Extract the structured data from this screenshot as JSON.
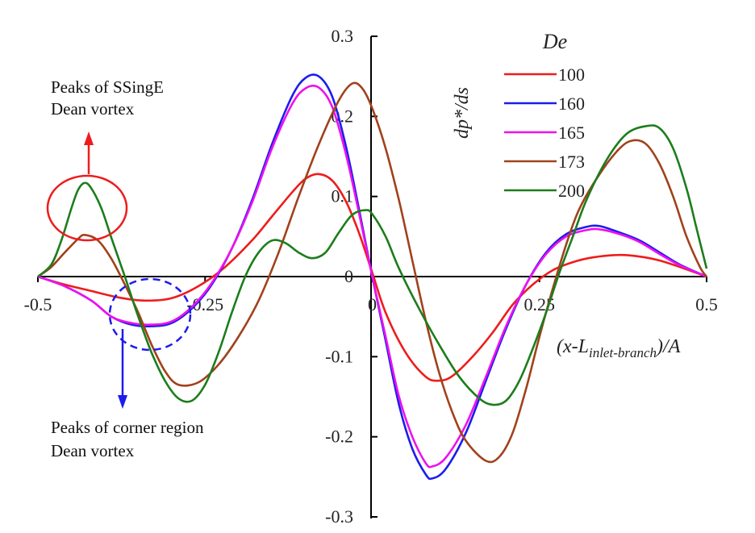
{
  "chart_data": {
    "type": "line",
    "xlabel_parts": [
      "(x-L",
      "inlet-branch",
      ")/A"
    ],
    "ylabel": "dp*/ds",
    "xlim": [
      -0.5,
      0.5
    ],
    "ylim": [
      -0.3,
      0.3
    ],
    "x_ticks": [
      {
        "value": -0.5,
        "label": "-0.5"
      },
      {
        "value": -0.25,
        "label": "-0.25"
      },
      {
        "value": 0,
        "label": "0"
      },
      {
        "value": 0.25,
        "label": "0.25"
      },
      {
        "value": 0.5,
        "label": "0.5"
      }
    ],
    "y_ticks": [
      {
        "value": 0.3,
        "label": "0.3"
      },
      {
        "value": 0.2,
        "label": "0.2"
      },
      {
        "value": 0.1,
        "label": "0.1"
      },
      {
        "value": 0,
        "label": "0"
      },
      {
        "value": -0.1,
        "label": "-0.1"
      },
      {
        "value": -0.2,
        "label": "-0.2"
      },
      {
        "value": -0.3,
        "label": "-0.3"
      }
    ],
    "legend_title": "De",
    "legend_position": "top-right",
    "series": [
      {
        "name": "100",
        "color": "#ee1c1c",
        "points": [
          [
            -0.5,
            0
          ],
          [
            -0.46,
            -0.01
          ],
          [
            -0.42,
            -0.018
          ],
          [
            -0.38,
            -0.026
          ],
          [
            -0.34,
            -0.03
          ],
          [
            -0.3,
            -0.027
          ],
          [
            -0.26,
            -0.012
          ],
          [
            -0.22,
            0.012
          ],
          [
            -0.18,
            0.045
          ],
          [
            -0.15,
            0.075
          ],
          [
            -0.12,
            0.105
          ],
          [
            -0.1,
            0.122
          ],
          [
            -0.08,
            0.128
          ],
          [
            -0.06,
            0.12
          ],
          [
            -0.04,
            0.095
          ],
          [
            -0.02,
            0.055
          ],
          [
            0,
            0.005
          ],
          [
            0.02,
            -0.045
          ],
          [
            0.05,
            -0.095
          ],
          [
            0.08,
            -0.125
          ],
          [
            0.1,
            -0.13
          ],
          [
            0.12,
            -0.124
          ],
          [
            0.15,
            -0.1
          ],
          [
            0.18,
            -0.07
          ],
          [
            0.21,
            -0.035
          ],
          [
            0.24,
            -0.01
          ],
          [
            0.27,
            0.008
          ],
          [
            0.3,
            0.018
          ],
          [
            0.33,
            0.024
          ],
          [
            0.37,
            0.027
          ],
          [
            0.4,
            0.025
          ],
          [
            0.43,
            0.02
          ],
          [
            0.46,
            0.012
          ],
          [
            0.5,
            0
          ]
        ]
      },
      {
        "name": "160",
        "color": "#1c1cee",
        "points": [
          [
            -0.5,
            0
          ],
          [
            -0.46,
            -0.012
          ],
          [
            -0.42,
            -0.03
          ],
          [
            -0.39,
            -0.05
          ],
          [
            -0.36,
            -0.06
          ],
          [
            -0.33,
            -0.062
          ],
          [
            -0.3,
            -0.058
          ],
          [
            -0.27,
            -0.04
          ],
          [
            -0.24,
            -0.01
          ],
          [
            -0.21,
            0.035
          ],
          [
            -0.18,
            0.095
          ],
          [
            -0.15,
            0.165
          ],
          [
            -0.12,
            0.225
          ],
          [
            -0.1,
            0.248
          ],
          [
            -0.08,
            0.25
          ],
          [
            -0.06,
            0.225
          ],
          [
            -0.04,
            0.165
          ],
          [
            -0.02,
            0.085
          ],
          [
            0,
            0.0
          ],
          [
            0.02,
            -0.08
          ],
          [
            0.04,
            -0.16
          ],
          [
            0.06,
            -0.215
          ],
          [
            0.08,
            -0.247
          ],
          [
            0.09,
            -0.252
          ],
          [
            0.11,
            -0.24
          ],
          [
            0.14,
            -0.195
          ],
          [
            0.17,
            -0.13
          ],
          [
            0.2,
            -0.065
          ],
          [
            0.23,
            -0.01
          ],
          [
            0.26,
            0.03
          ],
          [
            0.29,
            0.053
          ],
          [
            0.32,
            0.062
          ],
          [
            0.34,
            0.063
          ],
          [
            0.37,
            0.055
          ],
          [
            0.4,
            0.045
          ],
          [
            0.43,
            0.03
          ],
          [
            0.46,
            0.015
          ],
          [
            0.5,
            0
          ]
        ]
      },
      {
        "name": "165",
        "color": "#ee10ee",
        "points": [
          [
            -0.5,
            0
          ],
          [
            -0.46,
            -0.012
          ],
          [
            -0.42,
            -0.03
          ],
          [
            -0.39,
            -0.05
          ],
          [
            -0.36,
            -0.058
          ],
          [
            -0.33,
            -0.06
          ],
          [
            -0.3,
            -0.056
          ],
          [
            -0.27,
            -0.038
          ],
          [
            -0.24,
            -0.008
          ],
          [
            -0.21,
            0.035
          ],
          [
            -0.18,
            0.092
          ],
          [
            -0.15,
            0.16
          ],
          [
            -0.12,
            0.215
          ],
          [
            -0.1,
            0.235
          ],
          [
            -0.08,
            0.236
          ],
          [
            -0.06,
            0.212
          ],
          [
            -0.04,
            0.155
          ],
          [
            -0.02,
            0.08
          ],
          [
            0,
            0.0
          ],
          [
            0.02,
            -0.075
          ],
          [
            0.04,
            -0.15
          ],
          [
            0.06,
            -0.2
          ],
          [
            0.08,
            -0.233
          ],
          [
            0.09,
            -0.237
          ],
          [
            0.11,
            -0.226
          ],
          [
            0.14,
            -0.185
          ],
          [
            0.17,
            -0.125
          ],
          [
            0.2,
            -0.062
          ],
          [
            0.23,
            -0.01
          ],
          [
            0.26,
            0.028
          ],
          [
            0.29,
            0.05
          ],
          [
            0.32,
            0.058
          ],
          [
            0.34,
            0.059
          ],
          [
            0.37,
            0.053
          ],
          [
            0.4,
            0.043
          ],
          [
            0.43,
            0.028
          ],
          [
            0.46,
            0.014
          ],
          [
            0.5,
            0
          ]
        ]
      },
      {
        "name": "173",
        "color": "#a0421c",
        "points": [
          [
            -0.5,
            0
          ],
          [
            -0.48,
            0.012
          ],
          [
            -0.46,
            0.03
          ],
          [
            -0.44,
            0.047
          ],
          [
            -0.43,
            0.052
          ],
          [
            -0.41,
            0.045
          ],
          [
            -0.39,
            0.022
          ],
          [
            -0.37,
            -0.01
          ],
          [
            -0.35,
            -0.045
          ],
          [
            -0.33,
            -0.085
          ],
          [
            -0.31,
            -0.118
          ],
          [
            -0.29,
            -0.135
          ],
          [
            -0.26,
            -0.132
          ],
          [
            -0.23,
            -0.11
          ],
          [
            -0.2,
            -0.075
          ],
          [
            -0.17,
            -0.03
          ],
          [
            -0.14,
            0.03
          ],
          [
            -0.11,
            0.1
          ],
          [
            -0.08,
            0.165
          ],
          [
            -0.05,
            0.22
          ],
          [
            -0.03,
            0.241
          ],
          [
            -0.015,
            0.235
          ],
          [
            0,
            0.21
          ],
          [
            0.02,
            0.16
          ],
          [
            0.04,
            0.095
          ],
          [
            0.06,
            0.02
          ],
          [
            0.08,
            -0.055
          ],
          [
            0.1,
            -0.12
          ],
          [
            0.12,
            -0.17
          ],
          [
            0.14,
            -0.205
          ],
          [
            0.17,
            -0.23
          ],
          [
            0.19,
            -0.225
          ],
          [
            0.21,
            -0.195
          ],
          [
            0.23,
            -0.14
          ],
          [
            0.25,
            -0.075
          ],
          [
            0.27,
            -0.015
          ],
          [
            0.29,
            0.04
          ],
          [
            0.31,
            0.085
          ],
          [
            0.34,
            0.128
          ],
          [
            0.37,
            0.16
          ],
          [
            0.39,
            0.17
          ],
          [
            0.41,
            0.165
          ],
          [
            0.43,
            0.14
          ],
          [
            0.45,
            0.1
          ],
          [
            0.47,
            0.05
          ],
          [
            0.49,
            0.012
          ],
          [
            0.5,
            0
          ]
        ]
      },
      {
        "name": "200",
        "color": "#1c7d1c",
        "points": [
          [
            -0.5,
            0
          ],
          [
            -0.48,
            0.015
          ],
          [
            -0.465,
            0.045
          ],
          [
            -0.45,
            0.085
          ],
          [
            -0.44,
            0.108
          ],
          [
            -0.43,
            0.117
          ],
          [
            -0.42,
            0.11
          ],
          [
            -0.405,
            0.085
          ],
          [
            -0.39,
            0.048
          ],
          [
            -0.37,
            0.0
          ],
          [
            -0.35,
            -0.05
          ],
          [
            -0.33,
            -0.095
          ],
          [
            -0.31,
            -0.13
          ],
          [
            -0.29,
            -0.152
          ],
          [
            -0.27,
            -0.155
          ],
          [
            -0.25,
            -0.135
          ],
          [
            -0.23,
            -0.095
          ],
          [
            -0.21,
            -0.045
          ],
          [
            -0.19,
            0.0
          ],
          [
            -0.17,
            0.03
          ],
          [
            -0.15,
            0.045
          ],
          [
            -0.13,
            0.042
          ],
          [
            -0.11,
            0.03
          ],
          [
            -0.09,
            0.023
          ],
          [
            -0.07,
            0.03
          ],
          [
            -0.05,
            0.055
          ],
          [
            -0.03,
            0.077
          ],
          [
            -0.01,
            0.083
          ],
          [
            0.0,
            0.078
          ],
          [
            0.02,
            0.05
          ],
          [
            0.04,
            0.01
          ],
          [
            0.07,
            -0.04
          ],
          [
            0.1,
            -0.085
          ],
          [
            0.13,
            -0.125
          ],
          [
            0.16,
            -0.152
          ],
          [
            0.18,
            -0.16
          ],
          [
            0.2,
            -0.155
          ],
          [
            0.22,
            -0.13
          ],
          [
            0.24,
            -0.09
          ],
          [
            0.26,
            -0.045
          ],
          [
            0.28,
            0.005
          ],
          [
            0.3,
            0.05
          ],
          [
            0.32,
            0.095
          ],
          [
            0.35,
            0.145
          ],
          [
            0.38,
            0.178
          ],
          [
            0.41,
            0.188
          ],
          [
            0.43,
            0.185
          ],
          [
            0.45,
            0.16
          ],
          [
            0.47,
            0.11
          ],
          [
            0.485,
            0.06
          ],
          [
            0.5,
            0.01
          ]
        ]
      }
    ]
  },
  "annotations": {
    "top_line1": "Peaks of SSingE",
    "top_line2": "Dean  vortex",
    "bottom_line1": "Peaks of corner region",
    "bottom_line2": "Dean vortex"
  }
}
